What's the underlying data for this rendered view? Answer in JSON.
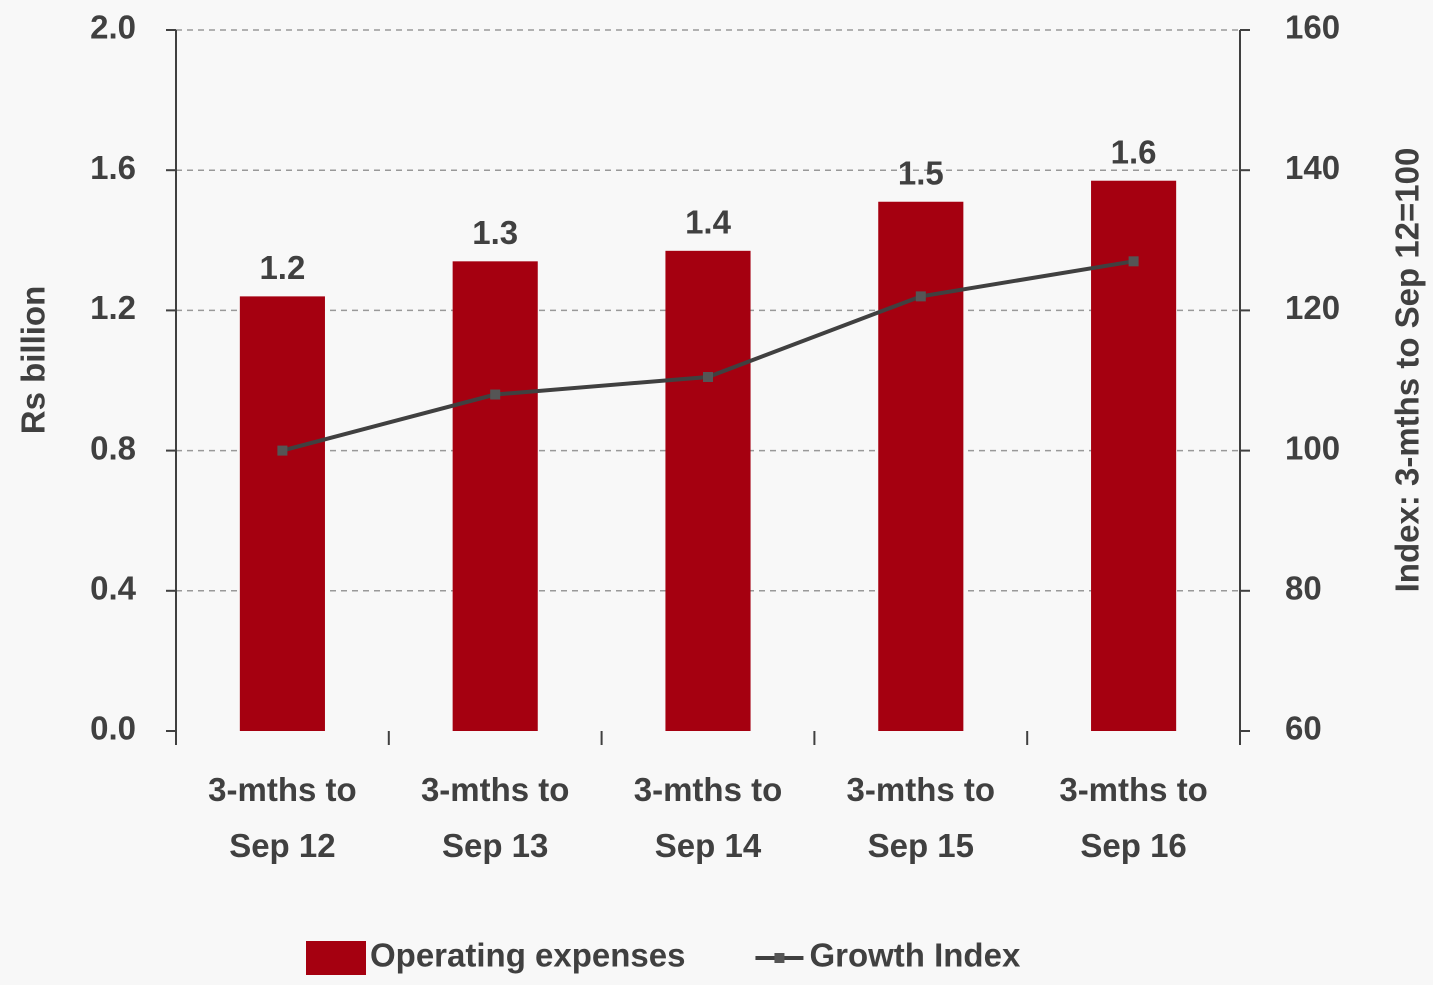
{
  "chart_data": {
    "type": "bar_line",
    "categories": [
      "3-mths to\nSep 12",
      "3-mths to\nSep 13",
      "3-mths to\nSep 14",
      "3-mths to\nSep 15",
      "3-mths to\nSep 16"
    ],
    "series": [
      {
        "name": "Operating expenses",
        "type": "bar",
        "color": "#a50010",
        "values": [
          1.24,
          1.34,
          1.37,
          1.51,
          1.57
        ],
        "value_labels": [
          "1.2",
          "1.3",
          "1.4",
          "1.5",
          "1.6"
        ]
      },
      {
        "name": "Growth Index",
        "type": "line",
        "axis": "y2",
        "color": "#404040",
        "values": [
          100,
          108,
          110.5,
          122,
          127
        ]
      }
    ],
    "ylabel": "Rs billion",
    "y2label": "Index: 3-mths to Sep 12=100",
    "ylim": [
      0,
      2.0
    ],
    "yticks": [
      {
        "value": 0,
        "label": "0.0"
      },
      0.4,
      0.8,
      1.2,
      1.6,
      {
        "value": 2,
        "label": "2.0"
      }
    ],
    "y2lim": [
      60,
      160
    ],
    "y2ticks": [
      60,
      80,
      100,
      120,
      140,
      160
    ],
    "grid": true,
    "legend": "bottom"
  }
}
